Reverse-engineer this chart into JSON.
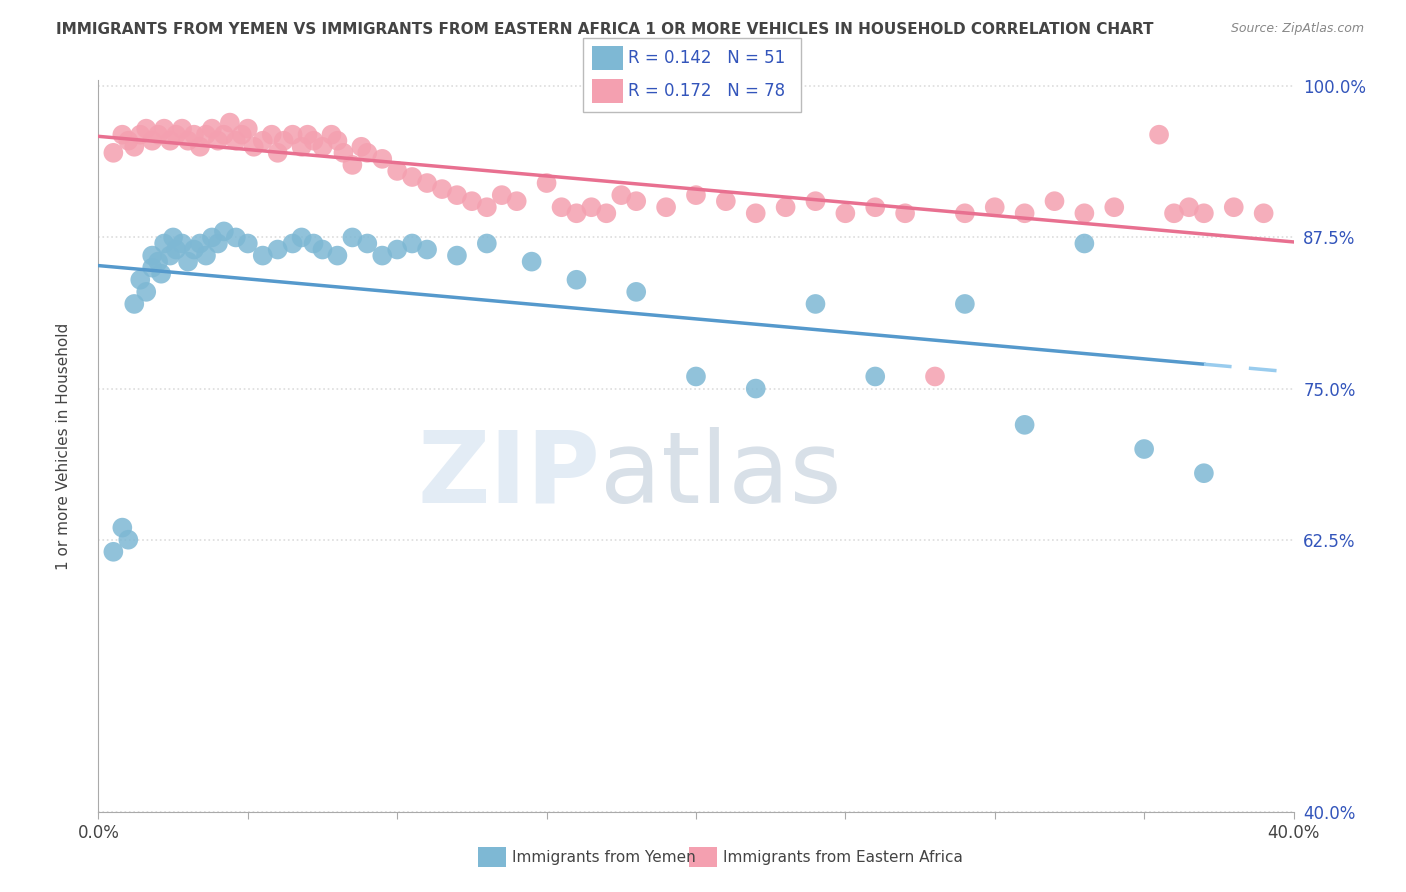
{
  "title": "IMMIGRANTS FROM YEMEN VS IMMIGRANTS FROM EASTERN AFRICA 1 OR MORE VEHICLES IN HOUSEHOLD CORRELATION CHART",
  "source": "Source: ZipAtlas.com",
  "ylabel": "1 or more Vehicles in Household",
  "xlim": [
    0.0,
    0.4
  ],
  "ylim": [
    0.4,
    1.005
  ],
  "xticks": [
    0.0,
    0.05,
    0.1,
    0.15,
    0.2,
    0.25,
    0.3,
    0.35,
    0.4
  ],
  "ytick_positions": [
    0.4,
    0.625,
    0.75,
    0.875,
    1.0
  ],
  "yticklabels": [
    "40.0%",
    "62.5%",
    "75.0%",
    "87.5%",
    "100.0%"
  ],
  "series1_label": "Immigrants from Yemen",
  "series1_color": "#7EB8D4",
  "series1_R": 0.142,
  "series1_N": 51,
  "series2_label": "Immigrants from Eastern Africa",
  "series2_color": "#F4A0B0",
  "series2_R": 0.172,
  "series2_N": 78,
  "legend_color": "#3355BB",
  "title_color": "#444444",
  "axis_color": "#AAAAAA",
  "grid_color": "#DDDDDD",
  "scatter1_x": [
    0.005,
    0.008,
    0.01,
    0.012,
    0.014,
    0.016,
    0.018,
    0.018,
    0.02,
    0.021,
    0.022,
    0.024,
    0.025,
    0.026,
    0.028,
    0.03,
    0.032,
    0.034,
    0.036,
    0.038,
    0.04,
    0.042,
    0.046,
    0.05,
    0.055,
    0.06,
    0.065,
    0.068,
    0.072,
    0.075,
    0.08,
    0.085,
    0.09,
    0.095,
    0.1,
    0.105,
    0.11,
    0.12,
    0.13,
    0.145,
    0.16,
    0.18,
    0.2,
    0.22,
    0.24,
    0.26,
    0.29,
    0.31,
    0.33,
    0.35,
    0.37
  ],
  "scatter1_y": [
    0.615,
    0.635,
    0.625,
    0.82,
    0.84,
    0.83,
    0.85,
    0.86,
    0.855,
    0.845,
    0.87,
    0.86,
    0.875,
    0.865,
    0.87,
    0.855,
    0.865,
    0.87,
    0.86,
    0.875,
    0.87,
    0.88,
    0.875,
    0.87,
    0.86,
    0.865,
    0.87,
    0.875,
    0.87,
    0.865,
    0.86,
    0.875,
    0.87,
    0.86,
    0.865,
    0.87,
    0.865,
    0.86,
    0.87,
    0.855,
    0.84,
    0.83,
    0.76,
    0.75,
    0.82,
    0.76,
    0.82,
    0.72,
    0.87,
    0.7,
    0.68
  ],
  "scatter2_x": [
    0.005,
    0.008,
    0.01,
    0.012,
    0.014,
    0.016,
    0.018,
    0.02,
    0.022,
    0.024,
    0.026,
    0.028,
    0.03,
    0.032,
    0.034,
    0.036,
    0.038,
    0.04,
    0.042,
    0.044,
    0.046,
    0.048,
    0.05,
    0.052,
    0.055,
    0.058,
    0.06,
    0.062,
    0.065,
    0.068,
    0.07,
    0.072,
    0.075,
    0.078,
    0.08,
    0.082,
    0.085,
    0.088,
    0.09,
    0.095,
    0.1,
    0.105,
    0.11,
    0.115,
    0.12,
    0.125,
    0.13,
    0.135,
    0.14,
    0.15,
    0.155,
    0.16,
    0.165,
    0.17,
    0.175,
    0.18,
    0.19,
    0.2,
    0.21,
    0.22,
    0.23,
    0.24,
    0.25,
    0.26,
    0.27,
    0.28,
    0.29,
    0.3,
    0.31,
    0.32,
    0.33,
    0.34,
    0.355,
    0.36,
    0.365,
    0.37,
    0.38,
    0.39
  ],
  "scatter2_y": [
    0.945,
    0.96,
    0.955,
    0.95,
    0.96,
    0.965,
    0.955,
    0.96,
    0.965,
    0.955,
    0.96,
    0.965,
    0.955,
    0.96,
    0.95,
    0.96,
    0.965,
    0.955,
    0.96,
    0.97,
    0.955,
    0.96,
    0.965,
    0.95,
    0.955,
    0.96,
    0.945,
    0.955,
    0.96,
    0.95,
    0.96,
    0.955,
    0.95,
    0.96,
    0.955,
    0.945,
    0.935,
    0.95,
    0.945,
    0.94,
    0.93,
    0.925,
    0.92,
    0.915,
    0.91,
    0.905,
    0.9,
    0.91,
    0.905,
    0.92,
    0.9,
    0.895,
    0.9,
    0.895,
    0.91,
    0.905,
    0.9,
    0.91,
    0.905,
    0.895,
    0.9,
    0.905,
    0.895,
    0.9,
    0.895,
    0.76,
    0.895,
    0.9,
    0.895,
    0.905,
    0.895,
    0.9,
    0.96,
    0.895,
    0.9,
    0.895,
    0.9,
    0.895
  ]
}
